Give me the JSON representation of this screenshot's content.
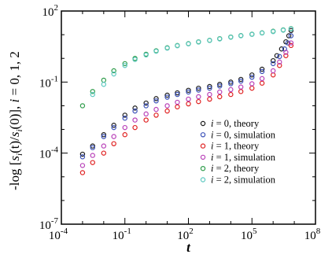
{
  "chart_data": {
    "type": "scatter",
    "title": "",
    "xlabel": "t",
    "ylabel": "-log [s_i(t)/s_i(0)], i = 0, 1, 2",
    "ylabel_parts": {
      "prefix": "-log [",
      "s1": "s",
      "sub1": "i",
      "mid": "(t)/",
      "s2": "s",
      "sub2": "i",
      "after": "(0)], ",
      "ivar": "i",
      "tail": " = 0, 1, 2"
    },
    "x_scale": "log",
    "y_scale": "log",
    "xlim": [
      0.0001,
      100000000
    ],
    "ylim": [
      1e-07,
      100
    ],
    "x_ticks": [
      {
        "value": 0.0001,
        "base": "10",
        "exp": "-4"
      },
      {
        "value": 0.1,
        "base": "10",
        "exp": "-1"
      },
      {
        "value": 100,
        "base": "10",
        "exp": "2"
      },
      {
        "value": 100000,
        "base": "10",
        "exp": "5"
      },
      {
        "value": 100000000,
        "base": "10",
        "exp": "8"
      }
    ],
    "y_ticks": [
      {
        "value": 1e-07,
        "base": "10",
        "exp": "-7"
      },
      {
        "value": 0.0001,
        "base": "10",
        "exp": "-4"
      },
      {
        "value": 0.1,
        "base": "10",
        "exp": "-1"
      },
      {
        "value": 100,
        "base": "10",
        "exp": "2"
      }
    ],
    "grid": false,
    "legend_position": "bottom-right",
    "series": [
      {
        "name": "i = 0, theory",
        "legend_var": "i",
        "legend_rest": " = 0, theory",
        "color": "#1a1a1a",
        "x": [
          0.001,
          0.003,
          0.01,
          0.03,
          0.1,
          0.3,
          1,
          3,
          10,
          30,
          100,
          300,
          1000,
          3000,
          10000,
          30000,
          100000,
          300000,
          1000000,
          1500000,
          2500000,
          4000000,
          5500000,
          7000000
        ],
        "y": [
          9e-05,
          0.0002,
          0.0006,
          0.0015,
          0.004,
          0.008,
          0.013,
          0.02,
          0.028,
          0.035,
          0.045,
          0.055,
          0.065,
          0.08,
          0.1,
          0.13,
          0.2,
          0.35,
          0.8,
          1.3,
          2.5,
          5,
          9,
          15
        ]
      },
      {
        "name": "i = 0, simulation",
        "legend_var": "i",
        "legend_rest": " = 0, simulation",
        "color": "#3a50b8",
        "x": [
          0.001,
          0.003,
          0.01,
          0.03,
          0.1,
          0.3,
          1,
          3,
          10,
          30,
          100,
          300,
          1000,
          3000,
          10000,
          30000,
          100000,
          300000,
          1000000,
          2000000,
          3500000,
          5000000,
          7000000
        ],
        "y": [
          7e-05,
          0.00017,
          0.0005,
          0.0012,
          0.003,
          0.006,
          0.01,
          0.016,
          0.023,
          0.03,
          0.038,
          0.046,
          0.055,
          0.068,
          0.085,
          0.11,
          0.16,
          0.28,
          0.6,
          1.2,
          2.5,
          4.5,
          9
        ]
      },
      {
        "name": "i = 1, theory",
        "legend_var": "i",
        "legend_rest": " = 1, theory",
        "color": "#e02020",
        "x": [
          0.001,
          0.003,
          0.01,
          0.03,
          0.1,
          0.3,
          1,
          3,
          10,
          30,
          100,
          300,
          1000,
          3000,
          10000,
          30000,
          100000,
          300000,
          1000000,
          2000000,
          4000000,
          7000000
        ],
        "y": [
          1.5e-05,
          4e-05,
          0.0001,
          0.00025,
          0.0006,
          0.0012,
          0.0025,
          0.004,
          0.006,
          0.009,
          0.012,
          0.015,
          0.019,
          0.024,
          0.03,
          0.04,
          0.055,
          0.09,
          0.2,
          0.5,
          1.3,
          3.5
        ]
      },
      {
        "name": "i = 1, simulation",
        "legend_var": "i",
        "legend_rest": " = 1, simulation",
        "color": "#b840b8",
        "x": [
          0.001,
          0.003,
          0.01,
          0.03,
          0.1,
          0.3,
          1,
          3,
          10,
          30,
          100,
          300,
          1000,
          3000,
          10000,
          30000,
          100000,
          300000,
          1000000,
          2000000,
          4000000,
          7000000
        ],
        "y": [
          3e-05,
          8e-05,
          0.0002,
          0.0005,
          0.0012,
          0.0025,
          0.0045,
          0.007,
          0.01,
          0.014,
          0.019,
          0.024,
          0.03,
          0.038,
          0.048,
          0.062,
          0.085,
          0.14,
          0.3,
          0.7,
          1.8,
          4.5
        ]
      },
      {
        "name": "i = 2, theory",
        "legend_var": "i",
        "legend_rest": " = 2, theory",
        "color": "#2e9c4a",
        "x": [
          0.001,
          0.003,
          0.01,
          0.03,
          0.1,
          0.3,
          1,
          3,
          10,
          30,
          100,
          300,
          1000,
          3000,
          10000,
          30000,
          100000,
          300000,
          1000000,
          3000000,
          7000000
        ],
        "y": [
          0.01,
          0.04,
          0.12,
          0.3,
          0.6,
          1.0,
          1.5,
          2.1,
          2.8,
          3.5,
          4.2,
          5.0,
          5.8,
          6.8,
          8.0,
          9.2,
          10.5,
          12,
          14,
          16,
          18
        ]
      },
      {
        "name": "i = 2, simulation",
        "legend_var": "i",
        "legend_rest": " = 2, simulation",
        "color": "#5cc8c0",
        "x": [
          0.003,
          0.01,
          0.03,
          0.1,
          0.3,
          1,
          3,
          10,
          30,
          100,
          300,
          1000,
          3000,
          10000,
          30000,
          100000,
          300000,
          1000000,
          3000000,
          7000000
        ],
        "y": [
          0.03,
          0.08,
          0.22,
          0.5,
          0.9,
          1.4,
          2.0,
          2.7,
          3.4,
          4.1,
          4.9,
          5.7,
          6.6,
          7.8,
          9.0,
          10.3,
          11.8,
          13.5,
          15.5,
          17.5
        ]
      }
    ]
  }
}
